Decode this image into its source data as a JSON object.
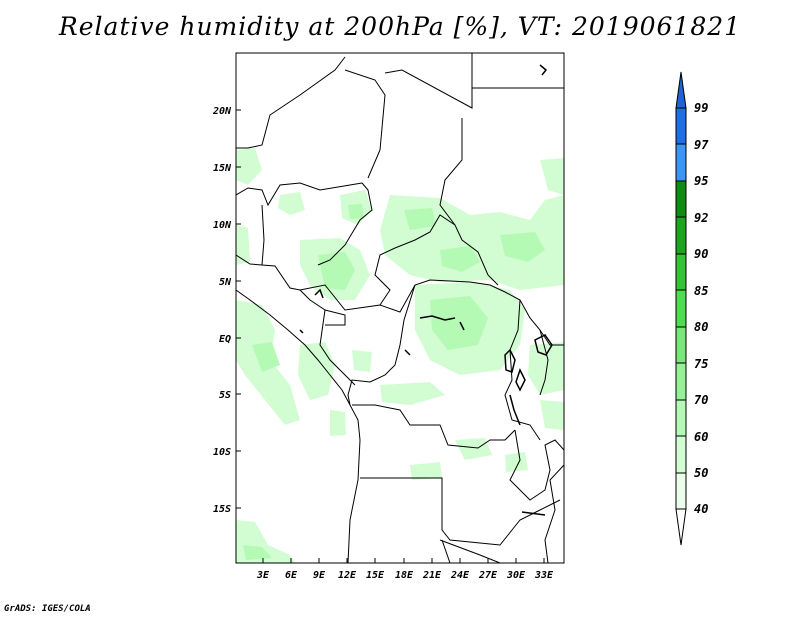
{
  "title": "Relative humidity at 200hPa [%], VT: 2019061821",
  "credit": "GrADS: IGES/COLA",
  "map": {
    "lon_range": [
      0,
      36
    ],
    "lat_range": [
      -20,
      25
    ],
    "x_ticks": [
      "3E",
      "6E",
      "9E",
      "12E",
      "15E",
      "18E",
      "21E",
      "24E",
      "27E",
      "30E",
      "33E"
    ],
    "y_ticks": [
      "20N",
      "15N",
      "10N",
      "5N",
      "EQ",
      "5S",
      "10S",
      "15S"
    ],
    "border_color": "#000000"
  },
  "colorbar": {
    "levels": [
      "99",
      "97",
      "95",
      "92",
      "90",
      "85",
      "80",
      "75",
      "70",
      "60",
      "50",
      "40"
    ],
    "colors": [
      "#1e64d2",
      "#1e6ee6",
      "#3c96f5",
      "#0f8c0f",
      "#1ea51e",
      "#37c337",
      "#50dc50",
      "#78e678",
      "#96f096",
      "#b4fab4",
      "#d2fcd2",
      "#ebfeeb"
    ]
  },
  "humidity_fill_colors": {
    "light": "#d2fcd2",
    "medium": "#b4fab4"
  }
}
